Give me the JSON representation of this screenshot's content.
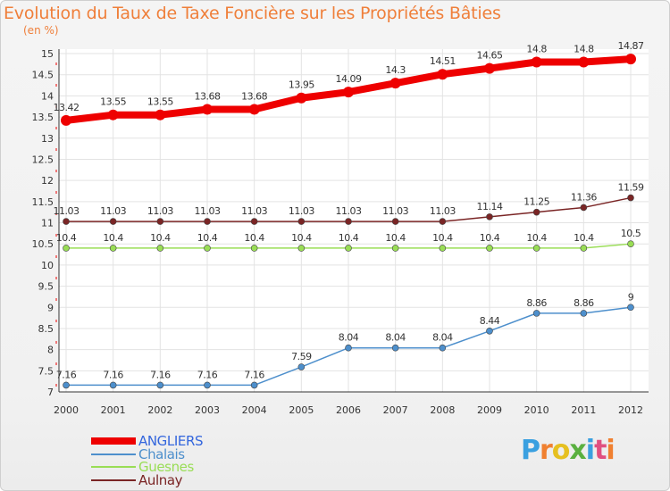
{
  "header": {
    "title": "Evolution du Taux de Taxe Foncière sur les Propriétés Bâties",
    "unit": "(en %)"
  },
  "brand": {
    "letters": [
      "P",
      "r",
      "o",
      "x",
      "i",
      "t",
      "i"
    ],
    "colors": [
      "#3aa0e0",
      "#f08030",
      "#e6c020",
      "#5ab040",
      "#3aa0e0",
      "#e05080",
      "#f08030"
    ]
  },
  "chart_data": {
    "type": "line",
    "title": "Evolution du Taux de Taxe Foncière sur les Propriétés Bâties",
    "ylabel": "(en %)",
    "xlabel": "",
    "x": [
      "2000",
      "2001",
      "2002",
      "2003",
      "2004",
      "2005",
      "2006",
      "2007",
      "2008",
      "2009",
      "2010",
      "2011",
      "2012"
    ],
    "ylim": [
      7,
      15
    ],
    "yticks": [
      "7",
      "7.5",
      "8",
      "8.5",
      "9",
      "9.5",
      "10",
      "10.5",
      "11",
      "11.5",
      "12",
      "12.5",
      "13",
      "13.5",
      "14",
      "14.5",
      "15"
    ],
    "grid": true,
    "legend_position": "bottom-left",
    "series": [
      {
        "name": "ANGLIERS",
        "color": "#ee0000",
        "values": [
          13.42,
          13.55,
          13.55,
          13.68,
          13.68,
          13.95,
          14.09,
          14.3,
          14.51,
          14.65,
          14.8,
          14.8,
          14.87
        ],
        "labels": [
          "13.42",
          "13.55",
          "13.55",
          "13.68",
          "13.68",
          "13.95",
          "14.09",
          "14.3",
          "14.51",
          "14.65",
          "14.8",
          "14.8",
          "14.87"
        ]
      },
      {
        "name": "Chalais",
        "color": "#4d8fcc",
        "values": [
          7.16,
          7.16,
          7.16,
          7.16,
          7.16,
          7.59,
          8.04,
          8.04,
          8.04,
          8.44,
          8.86,
          8.86,
          9
        ],
        "labels": [
          "7.16",
          "7.16",
          "7.16",
          "7.16",
          "7.16",
          "7.59",
          "8.04",
          "8.04",
          "8.04",
          "8.44",
          "8.86",
          "8.86",
          "9"
        ]
      },
      {
        "name": "Guesnes",
        "color": "#99dd55",
        "values": [
          10.4,
          10.4,
          10.4,
          10.4,
          10.4,
          10.4,
          10.4,
          10.4,
          10.4,
          10.4,
          10.4,
          10.4,
          10.5
        ],
        "labels": [
          "10.4",
          "10.4",
          "10.4",
          "10.4",
          "10.4",
          "10.4",
          "10.4",
          "10.4",
          "10.4",
          "10.4",
          "10.4",
          "10.4",
          "10.5"
        ]
      },
      {
        "name": "Aulnay",
        "color": "#7a2525",
        "values": [
          11.03,
          11.03,
          11.03,
          11.03,
          11.03,
          11.03,
          11.03,
          11.03,
          11.03,
          11.14,
          11.25,
          11.36,
          11.59
        ],
        "labels": [
          "11.03",
          "11.03",
          "11.03",
          "11.03",
          "11.03",
          "11.03",
          "11.03",
          "11.03",
          "11.03",
          "11.14",
          "11.25",
          "11.36",
          "11.59"
        ]
      }
    ]
  }
}
